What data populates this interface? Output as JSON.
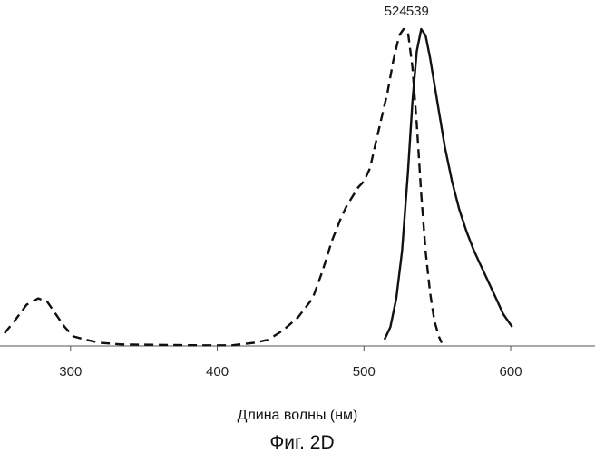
{
  "chart_data": {
    "type": "line",
    "title": "",
    "xlabel": "Длина волны (нм)",
    "ylabel": "",
    "caption": "Фиг. 2D",
    "xlim": [
      255,
      655
    ],
    "ylim": [
      0,
      1.0
    ],
    "x_ticks": [
      300,
      400,
      500,
      600
    ],
    "grid": false,
    "legend": "none",
    "series": [
      {
        "style": "dashed",
        "color": "#111111",
        "x": [
          255,
          262,
          270,
          278,
          284,
          290,
          296,
          302,
          310,
          320,
          335,
          350,
          370,
          390,
          410,
          425,
          435,
          445,
          455,
          465,
          472,
          478,
          484,
          488,
          492,
          496,
          500,
          504,
          508,
          512,
          516,
          520,
          524,
          527,
          530,
          533,
          536,
          539,
          542,
          545,
          548,
          551,
          553
        ],
        "y": [
          0.04,
          0.08,
          0.13,
          0.15,
          0.14,
          0.1,
          0.06,
          0.03,
          0.02,
          0.01,
          0.005,
          0.004,
          0.003,
          0.002,
          0.002,
          0.01,
          0.02,
          0.05,
          0.09,
          0.15,
          0.24,
          0.33,
          0.4,
          0.44,
          0.47,
          0.5,
          0.52,
          0.56,
          0.64,
          0.72,
          0.8,
          0.9,
          0.98,
          1.0,
          0.99,
          0.88,
          0.7,
          0.48,
          0.3,
          0.17,
          0.08,
          0.03,
          0.01
        ]
      },
      {
        "style": "solid",
        "color": "#111111",
        "x": [
          514,
          518,
          522,
          526,
          530,
          533,
          536,
          539,
          542,
          545,
          550,
          555,
          560,
          565,
          570,
          575,
          580,
          585,
          590,
          595,
          601
        ],
        "y": [
          0.02,
          0.06,
          0.15,
          0.3,
          0.55,
          0.77,
          0.93,
          1.0,
          0.98,
          0.91,
          0.77,
          0.63,
          0.52,
          0.43,
          0.36,
          0.3,
          0.25,
          0.2,
          0.15,
          0.1,
          0.06
        ]
      }
    ],
    "annotations": [
      {
        "text": "524",
        "x": 524
      },
      {
        "text": "539",
        "x": 539
      }
    ]
  }
}
